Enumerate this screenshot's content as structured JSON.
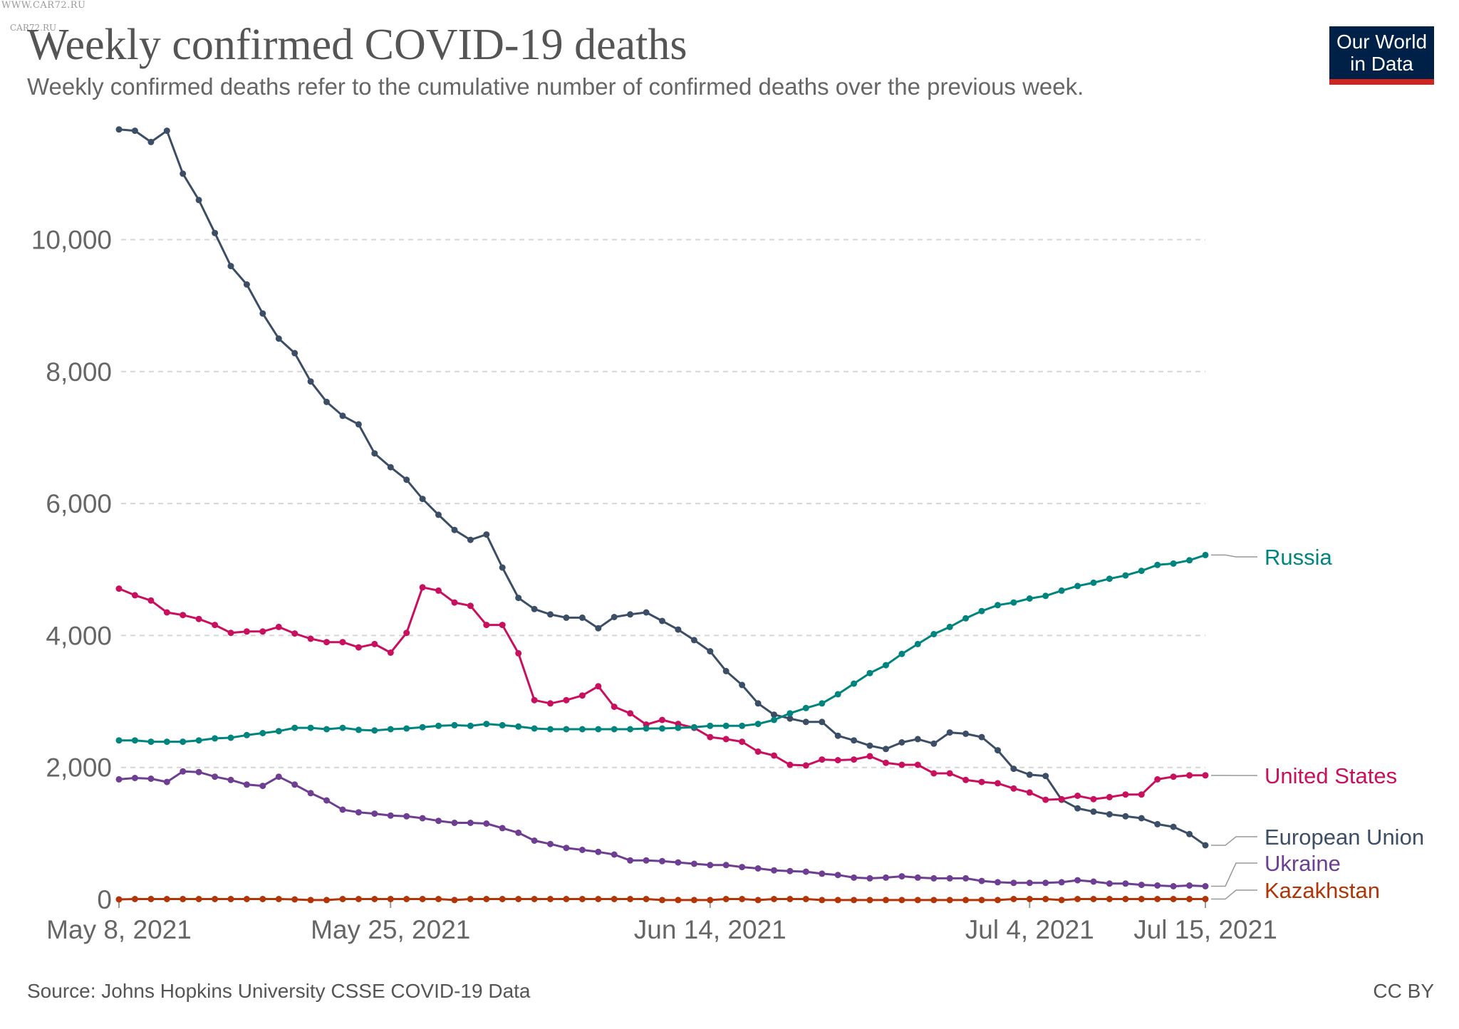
{
  "watermark": "WWW.CAR72.RU",
  "watermark2": "CAR72.RU",
  "title": "Weekly confirmed COVID-19 deaths",
  "subtitle": "Weekly confirmed deaths refer to the cumulative number of confirmed deaths over the previous week.",
  "logo": {
    "line1": "Our World",
    "line2": "in Data"
  },
  "source": "Source: Johns Hopkins University CSSE COVID-19 Data",
  "license": "CC BY",
  "colors": {
    "accent_logo_bg": "#002147",
    "accent_logo_bar": "#ce261e"
  },
  "chart_data": {
    "type": "line",
    "title": "Weekly confirmed COVID-19 deaths",
    "x_start": "2021-05-08",
    "x_end": "2021-07-15",
    "x_ticks": [
      {
        "label": "May 8, 2021",
        "day": 0
      },
      {
        "label": "May 25, 2021",
        "day": 17
      },
      {
        "label": "Jun 14, 2021",
        "day": 37
      },
      {
        "label": "Jul 4, 2021",
        "day": 57
      },
      {
        "label": "Jul 15, 2021",
        "day": 68
      }
    ],
    "y_ticks": [
      0,
      2000,
      4000,
      6000,
      8000,
      10000
    ],
    "y_tick_labels": [
      "0",
      "2,000",
      "4,000",
      "6,000",
      "8,000",
      "10,000"
    ],
    "ylim": [
      0,
      11700
    ],
    "grid": "horizontal dashed",
    "legend": "right, end-of-line labels",
    "series": [
      {
        "name": "European Union",
        "color": "#3c4e66",
        "values": [
          11670,
          11650,
          11480,
          11650,
          11000,
          10600,
          10100,
          9600,
          9320,
          8880,
          8500,
          8280,
          7850,
          7540,
          7330,
          7200,
          6760,
          6550,
          6360,
          6070,
          5830,
          5600,
          5450,
          5530,
          5030,
          4570,
          4400,
          4320,
          4270,
          4270,
          4110,
          4280,
          4320,
          4350,
          4220,
          4090,
          3930,
          3760,
          3460,
          3250,
          2970,
          2800,
          2740,
          2690,
          2690,
          2480,
          2410,
          2330,
          2280,
          2380,
          2430,
          2360,
          2530,
          2510,
          2460,
          2260,
          1980,
          1890,
          1870,
          1510,
          1380,
          1330,
          1290,
          1260,
          1230,
          1140,
          1100,
          990,
          820
        ]
      },
      {
        "name": "United States",
        "color": "#c8105e",
        "values": [
          4710,
          4610,
          4530,
          4350,
          4310,
          4250,
          4160,
          4040,
          4060,
          4060,
          4130,
          4030,
          3950,
          3900,
          3900,
          3820,
          3870,
          3740,
          4040,
          4730,
          4680,
          4500,
          4450,
          4160,
          4160,
          3730,
          3020,
          2970,
          3020,
          3090,
          3230,
          2920,
          2820,
          2650,
          2720,
          2660,
          2600,
          2460,
          2430,
          2390,
          2240,
          2180,
          2040,
          2030,
          2120,
          2110,
          2120,
          2170,
          2070,
          2040,
          2040,
          1910,
          1910,
          1810,
          1780,
          1760,
          1680,
          1620,
          1510,
          1520,
          1570,
          1520,
          1550,
          1590,
          1590,
          1820,
          1860,
          1880,
          1880
        ]
      },
      {
        "name": "Russia",
        "color": "#00847e",
        "values": [
          2410,
          2410,
          2390,
          2390,
          2390,
          2410,
          2440,
          2450,
          2490,
          2520,
          2550,
          2600,
          2600,
          2580,
          2600,
          2570,
          2560,
          2580,
          2590,
          2610,
          2630,
          2640,
          2630,
          2660,
          2640,
          2620,
          2590,
          2580,
          2580,
          2580,
          2580,
          2580,
          2580,
          2590,
          2590,
          2600,
          2610,
          2630,
          2630,
          2630,
          2660,
          2720,
          2820,
          2900,
          2970,
          3110,
          3270,
          3430,
          3550,
          3720,
          3870,
          4020,
          4130,
          4260,
          4370,
          4460,
          4500,
          4560,
          4600,
          4680,
          4750,
          4800,
          4860,
          4910,
          4980,
          5070,
          5090,
          5140,
          5220
        ]
      },
      {
        "name": "Ukraine",
        "color": "#6d3e91",
        "values": [
          1820,
          1840,
          1830,
          1780,
          1940,
          1930,
          1860,
          1810,
          1740,
          1720,
          1860,
          1740,
          1610,
          1500,
          1360,
          1320,
          1300,
          1270,
          1260,
          1230,
          1190,
          1160,
          1160,
          1150,
          1080,
          1010,
          890,
          840,
          780,
          750,
          720,
          680,
          590,
          590,
          580,
          560,
          540,
          520,
          520,
          490,
          470,
          440,
          430,
          420,
          390,
          370,
          330,
          320,
          330,
          350,
          330,
          320,
          320,
          320,
          280,
          260,
          250,
          250,
          250,
          260,
          290,
          270,
          240,
          240,
          220,
          210,
          200,
          210,
          200
        ]
      },
      {
        "name": "Kazakhstan",
        "color": "#b13507",
        "values": [
          0,
          5,
          5,
          5,
          5,
          5,
          5,
          5,
          5,
          5,
          5,
          0,
          -10,
          -10,
          5,
          5,
          5,
          5,
          5,
          5,
          5,
          -10,
          5,
          5,
          5,
          5,
          5,
          5,
          5,
          5,
          5,
          5,
          5,
          5,
          -10,
          -10,
          -10,
          -10,
          5,
          5,
          -10,
          5,
          5,
          5,
          -10,
          -10,
          -10,
          -10,
          -10,
          -10,
          -10,
          -10,
          -10,
          -10,
          -10,
          -10,
          5,
          5,
          5,
          -10,
          5,
          5,
          5,
          5,
          5,
          5,
          5,
          5,
          5
        ]
      }
    ]
  }
}
